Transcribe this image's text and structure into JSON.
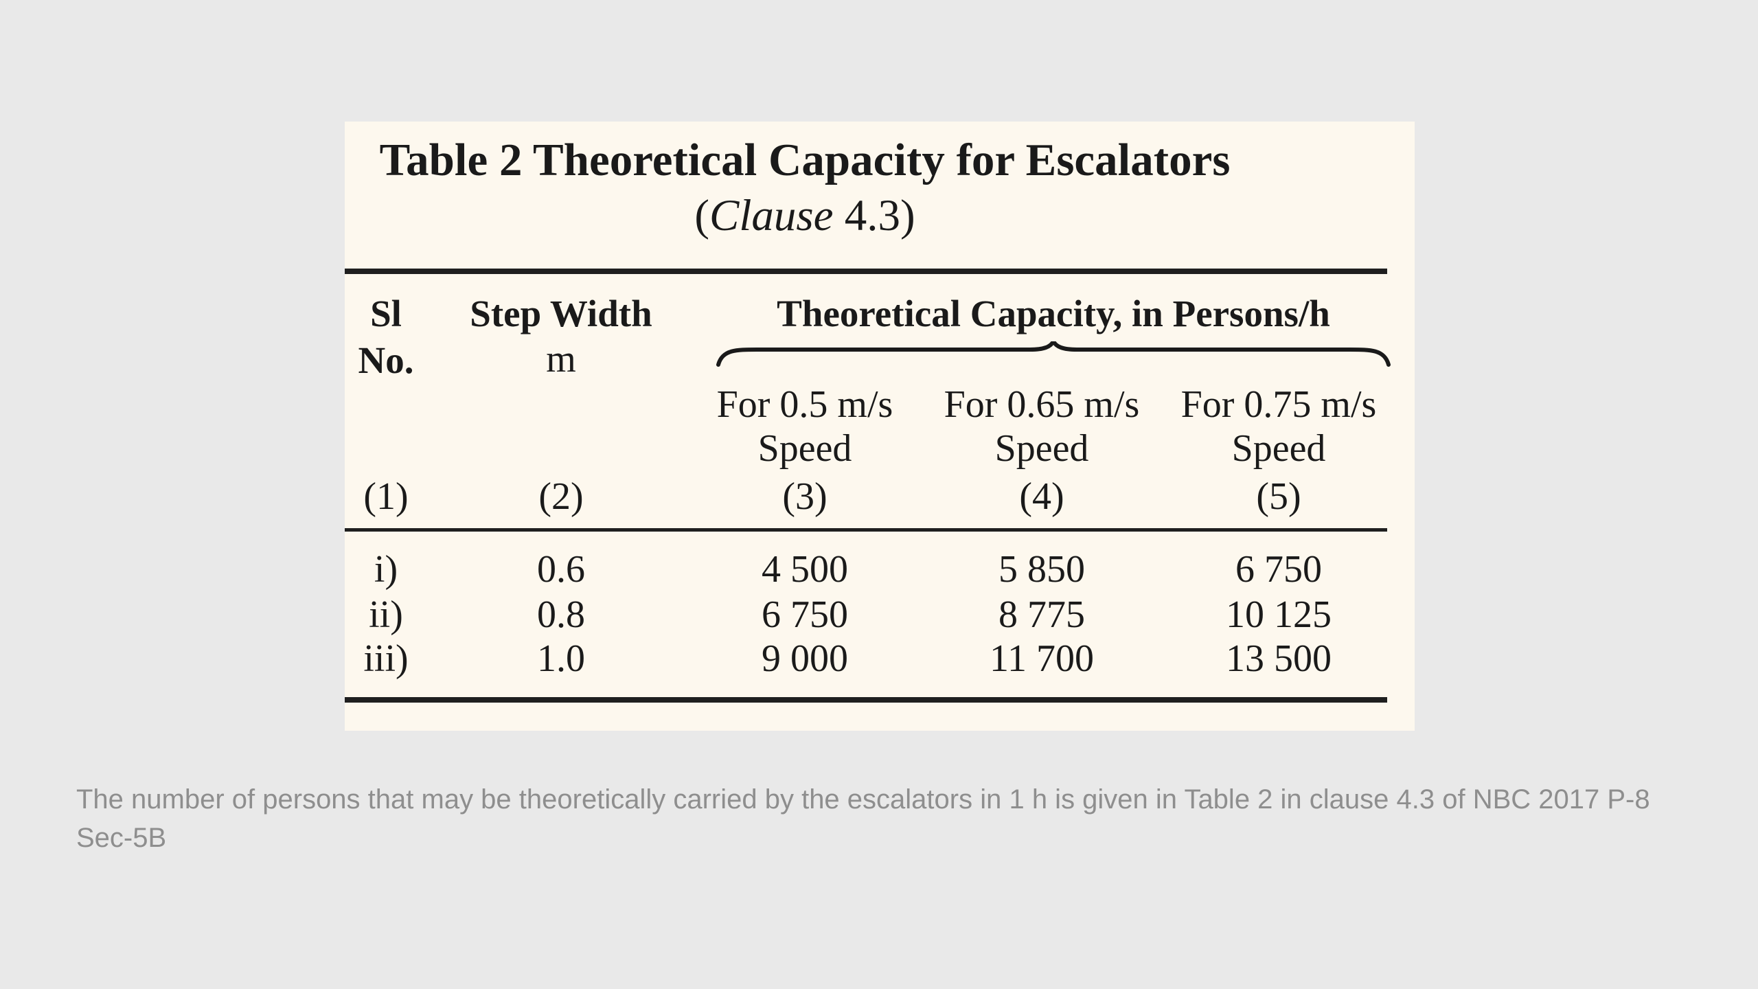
{
  "table": {
    "title": "Table 2 Theoretical Capacity for Escalators",
    "subtitle_open": "(",
    "subtitle_italic": "Clause",
    "subtitle_rest": " 4.3)",
    "columns": {
      "sl_line1": "Sl",
      "sl_line2": "No.",
      "step_line1": "Step Width",
      "step_line2": "m",
      "capacity_group": "Theoretical Capacity, in Persons/h",
      "speed_cols": [
        {
          "line1": "For 0.5 m/s",
          "line2": "Speed"
        },
        {
          "line1": "For 0.65 m/s",
          "line2": "Speed"
        },
        {
          "line1": "For 0.75 m/s",
          "line2": "Speed"
        }
      ],
      "numbers": [
        "(1)",
        "(2)",
        "(3)",
        "(4)",
        "(5)"
      ]
    },
    "rows": [
      {
        "sl": "i)",
        "width": "0.6",
        "c3": "4 500",
        "c4": "5 850",
        "c5": "6 750"
      },
      {
        "sl": "ii)",
        "width": "0.8",
        "c3": "6 750",
        "c4": "8 775",
        "c5": "10 125"
      },
      {
        "sl": "iii)",
        "width": "1.0",
        "c3": "9 000",
        "c4": "11 700",
        "c5": "13 500"
      }
    ]
  },
  "caption": "The number of persons that may be theoretically carried by the escalators in 1 h is given in Table 2 in clause 4.3 of NBC 2017 P-8 Sec-5B",
  "colors": {
    "background": "#e9e9e9",
    "table_paper": "#fdf8ee",
    "caption_text": "#8e8e8e"
  }
}
